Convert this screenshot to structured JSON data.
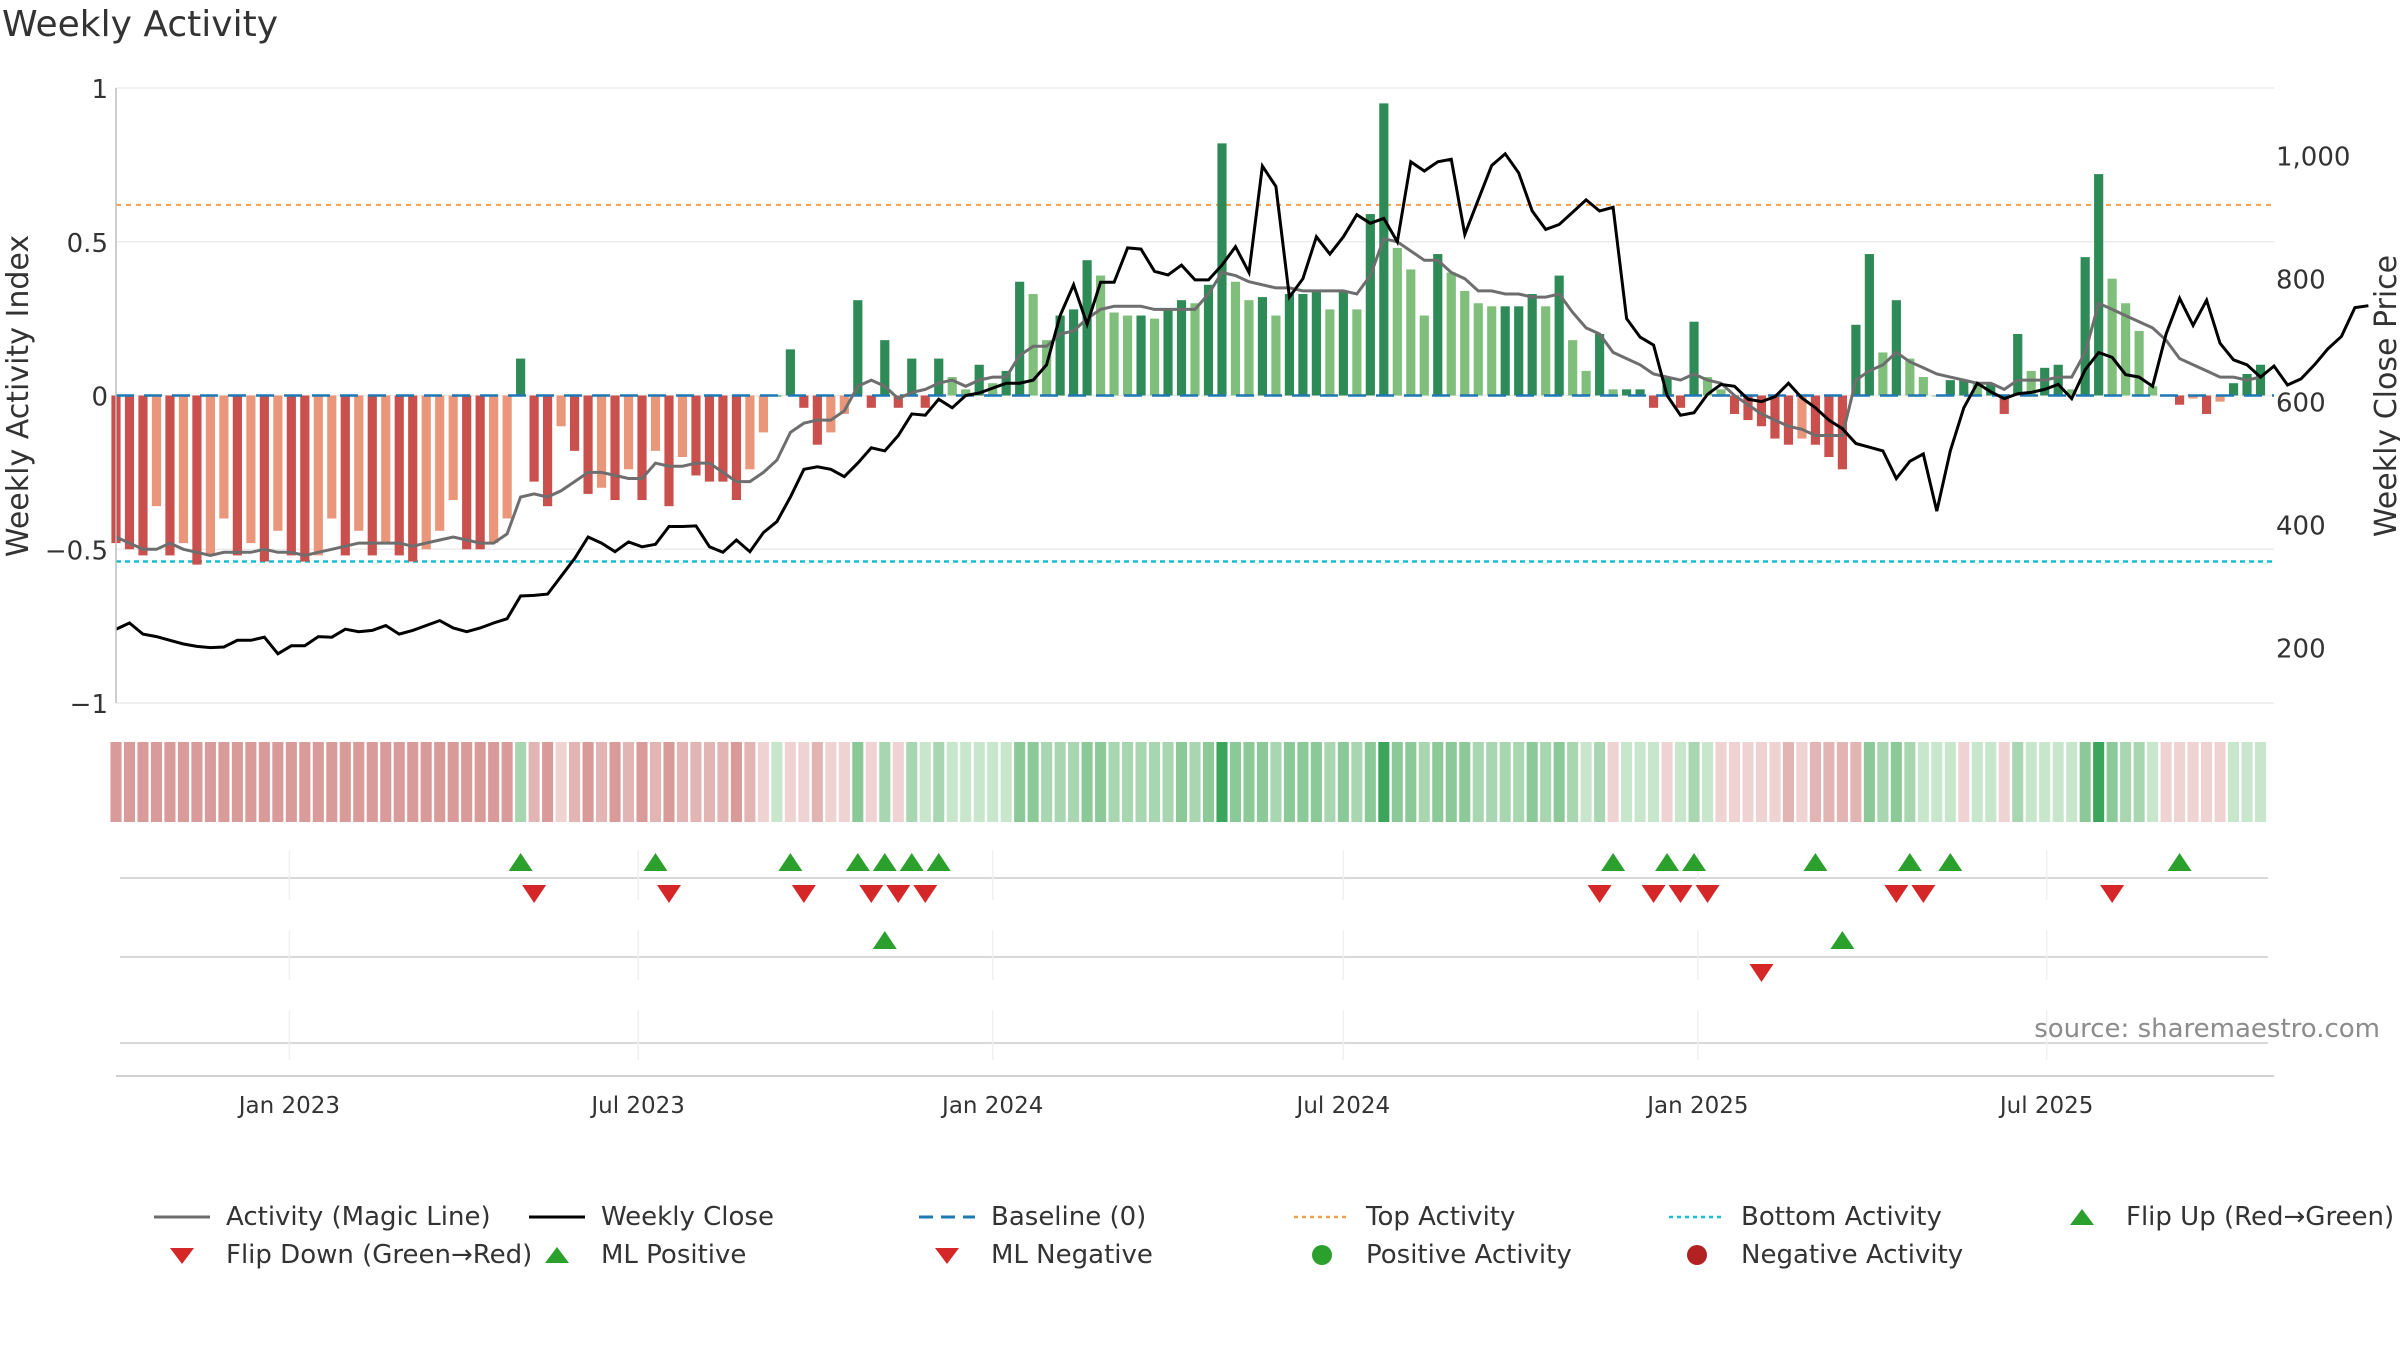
{
  "page": {
    "title": "Weekly Activity",
    "source": "source: sharemaestro.com"
  },
  "colors": {
    "strong_green": "#2e8b57",
    "light_green": "#7fbf7b",
    "strong_red": "#c9504c",
    "light_red": "#e9967a",
    "magic_line": "#6e6e6e",
    "close_line": "#000000",
    "baseline": "#1f77b4",
    "top": "#f0a04b",
    "bottom": "#17becf",
    "marker_up": "#2ca02c",
    "marker_down": "#d62728"
  },
  "chart_data": {
    "type": "bar",
    "title": "Weekly Activity",
    "ylabel": "Weekly Activity Index",
    "ylabel_right": "Weekly Close Price",
    "ylim": [
      -1,
      1
    ],
    "ylim_right": [
      110,
      1110
    ],
    "yticks": [
      1,
      0.5,
      0,
      -0.5,
      -1
    ],
    "ytick_labels": [
      "1",
      "0.5",
      "0",
      "−0.5",
      "−1"
    ],
    "yticks_right": [
      1000,
      800,
      600,
      400,
      200
    ],
    "ytick_labels_right": [
      "1,000",
      "800",
      "600",
      "400",
      "200"
    ],
    "x_range": [
      "2022-10-03",
      "2025-10-27"
    ],
    "x_ticks": [
      {
        "date": "2023-01-01",
        "label": "Jan 2023"
      },
      {
        "date": "2023-07-01",
        "label": "Jul 2023"
      },
      {
        "date": "2024-01-01",
        "label": "Jan 2024"
      },
      {
        "date": "2024-07-01",
        "label": "Jul 2024"
      },
      {
        "date": "2025-01-01",
        "label": "Jan 2025"
      },
      {
        "date": "2025-07-01",
        "label": "Jul 2025"
      }
    ],
    "first_week": "2022-10-03",
    "top_activity": 0.62,
    "bottom_activity": -0.54,
    "grid": true,
    "legend_position": "bottom",
    "activity": [
      -0.48,
      -0.5,
      -0.52,
      -0.36,
      -0.52,
      -0.48,
      -0.55,
      -0.52,
      -0.4,
      -0.52,
      -0.48,
      -0.54,
      -0.44,
      -0.52,
      -0.54,
      -0.52,
      -0.4,
      -0.52,
      -0.44,
      -0.52,
      -0.48,
      -0.52,
      -0.54,
      -0.5,
      -0.44,
      -0.34,
      -0.5,
      -0.5,
      -0.48,
      -0.4,
      0.12,
      -0.28,
      -0.36,
      -0.1,
      -0.18,
      -0.32,
      -0.3,
      -0.34,
      -0.24,
      -0.34,
      -0.18,
      -0.36,
      -0.2,
      -0.26,
      -0.28,
      -0.28,
      -0.34,
      -0.24,
      -0.12,
      0.0,
      0.15,
      -0.04,
      -0.16,
      -0.12,
      -0.06,
      0.31,
      -0.04,
      0.18,
      -0.04,
      0.12,
      -0.04,
      0.12,
      0.06,
      0.02,
      0.1,
      0.04,
      0.08,
      0.37,
      0.33,
      0.18,
      0.26,
      0.28,
      0.44,
      0.39,
      0.27,
      0.26,
      0.26,
      0.25,
      0.28,
      0.31,
      0.3,
      0.36,
      0.82,
      0.37,
      0.31,
      0.32,
      0.26,
      0.33,
      0.33,
      0.34,
      0.28,
      0.34,
      0.28,
      0.59,
      0.95,
      0.48,
      0.41,
      0.26,
      0.46,
      0.4,
      0.34,
      0.3,
      0.29,
      0.29,
      0.29,
      0.33,
      0.29,
      0.39,
      0.18,
      0.08,
      0.2,
      0.02,
      0.02,
      0.02,
      -0.04,
      0.06,
      -0.04,
      0.24,
      0.06,
      0.02,
      -0.06,
      -0.08,
      -0.1,
      -0.14,
      -0.16,
      -0.14,
      -0.16,
      -0.2,
      -0.24,
      0.23,
      0.46,
      0.14,
      0.31,
      0.12,
      0.06,
      0.0,
      0.05,
      0.05,
      0.04,
      0.04,
      -0.06,
      0.2,
      0.08,
      0.09,
      0.1,
      0.02,
      0.45,
      0.72,
      0.38,
      0.3,
      0.21,
      0.03,
      0.0,
      -0.03,
      -0.01,
      -0.06,
      -0.02,
      0.04,
      0.07,
      0.1
    ],
    "magic_line": [
      -0.46,
      -0.48,
      -0.5,
      -0.5,
      -0.48,
      -0.5,
      -0.51,
      -0.52,
      -0.51,
      -0.51,
      -0.51,
      -0.5,
      -0.51,
      -0.51,
      -0.52,
      -0.51,
      -0.5,
      -0.49,
      -0.48,
      -0.48,
      -0.48,
      -0.48,
      -0.49,
      -0.48,
      -0.47,
      -0.46,
      -0.47,
      -0.48,
      -0.48,
      -0.45,
      -0.33,
      -0.32,
      -0.33,
      -0.31,
      -0.28,
      -0.25,
      -0.25,
      -0.26,
      -0.27,
      -0.27,
      -0.22,
      -0.23,
      -0.23,
      -0.22,
      -0.22,
      -0.25,
      -0.28,
      -0.28,
      -0.25,
      -0.21,
      -0.12,
      -0.09,
      -0.08,
      -0.08,
      -0.05,
      0.03,
      0.05,
      0.03,
      -0.01,
      0.01,
      0.02,
      0.04,
      0.05,
      0.03,
      0.05,
      0.06,
      0.06,
      0.13,
      0.16,
      0.16,
      0.2,
      0.21,
      0.25,
      0.28,
      0.29,
      0.29,
      0.29,
      0.28,
      0.28,
      0.28,
      0.28,
      0.33,
      0.4,
      0.39,
      0.37,
      0.36,
      0.35,
      0.35,
      0.34,
      0.34,
      0.34,
      0.34,
      0.33,
      0.39,
      0.51,
      0.5,
      0.47,
      0.44,
      0.44,
      0.4,
      0.38,
      0.34,
      0.34,
      0.33,
      0.33,
      0.32,
      0.32,
      0.33,
      0.27,
      0.22,
      0.2,
      0.14,
      0.12,
      0.1,
      0.07,
      0.06,
      0.05,
      0.07,
      0.05,
      0.04,
      0.0,
      -0.03,
      -0.06,
      -0.08,
      -0.1,
      -0.11,
      -0.13,
      -0.13,
      -0.13,
      0.05,
      0.08,
      0.1,
      0.14,
      0.11,
      0.09,
      0.07,
      0.06,
      0.05,
      0.04,
      0.04,
      0.02,
      0.05,
      0.05,
      0.05,
      0.06,
      0.06,
      0.14,
      0.3,
      0.28,
      0.26,
      0.24,
      0.22,
      0.18,
      0.12,
      0.1,
      0.08,
      0.06,
      0.06,
      0.05,
      0.06
    ],
    "weekly_close": [
      230,
      240,
      222,
      218,
      212,
      206,
      202,
      200,
      201,
      212,
      212,
      217,
      190,
      203,
      203,
      218,
      217,
      230,
      226,
      228,
      236,
      222,
      228,
      236,
      244,
      232,
      226,
      232,
      240,
      247,
      284,
      285,
      287,
      316,
      345,
      380,
      370,
      356,
      372,
      364,
      368,
      397,
      397,
      398,
      364,
      355,
      375,
      356,
      387,
      405,
      445,
      490,
      494,
      490,
      478,
      500,
      525,
      520,
      545,
      580,
      578,
      604,
      590,
      610,
      614,
      622,
      630,
      630,
      635,
      660,
      740,
      790,
      726,
      794,
      794,
      850,
      848,
      812,
      806,
      822,
      798,
      798,
      822,
      852,
      810,
      983,
      950,
      770,
      800,
      868,
      840,
      868,
      904,
      890,
      898,
      860,
      990,
      975,
      990,
      994,
      872,
      928,
      984,
      1003,
      972,
      910,
      880,
      888,
      908,
      928,
      910,
      916,
      735,
      705,
      692,
      610,
      578,
      582,
      612,
      628,
      625,
      604,
      600,
      608,
      630,
      606,
      590,
      570,
      556,
      532,
      526,
      520,
      475,
      503,
      515,
      422,
      520,
      590,
      630,
      616,
      605,
      613,
      615,
      620,
      628,
      605,
      652,
      680,
      672,
      644,
      640,
      625,
      710,
      768,
      724,
      765,
      695,
      668,
      660,
      640,
      658,
      627,
      637,
      660,
      686,
      706,
      753,
      756
    ],
    "strip": [
      "r",
      "r",
      "r",
      "r",
      "r",
      "r",
      "r",
      "r",
      "r",
      "r",
      "r",
      "r",
      "r",
      "r",
      "r",
      "r",
      "r",
      "r",
      "r",
      "r",
      "r",
      "r",
      "r",
      "r",
      "r",
      "r",
      "r",
      "r",
      "r",
      "r",
      "g",
      "r",
      "r",
      "r",
      "r",
      "r",
      "r",
      "r",
      "r",
      "r",
      "r",
      "r",
      "r",
      "r",
      "r",
      "r",
      "r",
      "r",
      "r",
      "g",
      "r",
      "r",
      "r",
      "r",
      "r",
      "g",
      "r",
      "g",
      "r",
      "g",
      "g",
      "g",
      "g",
      "g",
      "g",
      "g",
      "g",
      "g",
      "g",
      "g",
      "g",
      "g",
      "g",
      "g",
      "g",
      "g",
      "g",
      "g",
      "g",
      "g",
      "g",
      "g",
      "G",
      "g",
      "g",
      "g",
      "g",
      "g",
      "g",
      "g",
      "g",
      "g",
      "g",
      "g",
      "G",
      "g",
      "g",
      "g",
      "g",
      "g",
      "g",
      "g",
      "g",
      "g",
      "g",
      "g",
      "g",
      "g",
      "g",
      "g",
      "g",
      "r",
      "g",
      "g",
      "g",
      "r",
      "g",
      "g",
      "g",
      "r",
      "r",
      "r",
      "r",
      "r",
      "r",
      "r",
      "r",
      "r",
      "r",
      "r",
      "g",
      "g",
      "g",
      "g",
      "g",
      "g",
      "g",
      "r",
      "g",
      "g",
      "r",
      "g",
      "g",
      "g",
      "g",
      "g",
      "g",
      "G",
      "g",
      "g",
      "g",
      "g",
      "r",
      "r",
      "r",
      "r",
      "r",
      "g",
      "g",
      "g"
    ],
    "flip_up_weeks": [
      30,
      40,
      50,
      55,
      57,
      59,
      61,
      111,
      115,
      117,
      126,
      133,
      136,
      153
    ],
    "flip_down_weeks": [
      31,
      41,
      51,
      56,
      58,
      60,
      110,
      114,
      116,
      118,
      132,
      134,
      148
    ],
    "ml_positive_weeks": [
      57,
      128
    ],
    "ml_negative_weeks": [
      122
    ]
  },
  "legend": [
    {
      "key": "magic",
      "label": "Activity (Magic Line)"
    },
    {
      "key": "close",
      "label": "Weekly Close"
    },
    {
      "key": "baseline",
      "label": "Baseline (0)"
    },
    {
      "key": "top",
      "label": "Top Activity"
    },
    {
      "key": "bottom",
      "label": "Bottom Activity"
    },
    {
      "key": "flip_up",
      "label": "Flip Up (Red→Green)"
    },
    {
      "key": "flip_down",
      "label": "Flip Down (Green→Red)"
    },
    {
      "key": "ml_pos",
      "label": "ML Positive"
    },
    {
      "key": "ml_neg",
      "label": "ML Negative"
    },
    {
      "key": "pos",
      "label": "Positive Activity"
    },
    {
      "key": "neg",
      "label": "Negative Activity"
    }
  ]
}
